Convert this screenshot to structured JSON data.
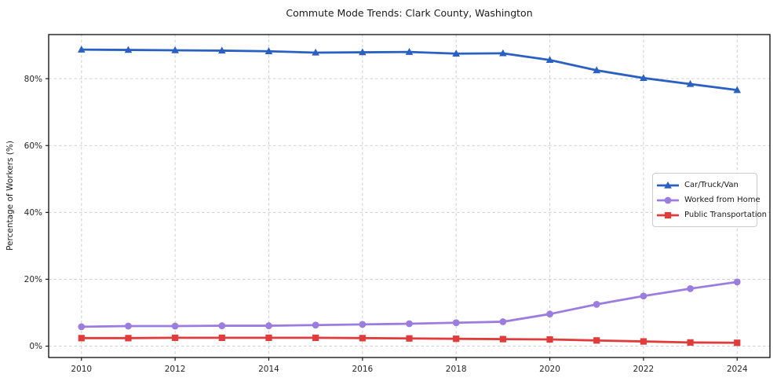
{
  "chart_data": {
    "type": "line",
    "title": "Commute Mode Trends: Clark County, Washington",
    "xlabel": "",
    "ylabel": "Percentage of Workers (%)",
    "x": [
      2010,
      2011,
      2012,
      2013,
      2014,
      2015,
      2016,
      2017,
      2018,
      2019,
      2020,
      2021,
      2022,
      2023,
      2024
    ],
    "series": [
      {
        "name": "Car/Truck/Van",
        "color": "#2a60c2",
        "marker": "triangle",
        "values": [
          88.7,
          88.6,
          88.5,
          88.4,
          88.2,
          87.8,
          87.9,
          88.0,
          87.5,
          87.6,
          85.6,
          82.5,
          80.2,
          78.4,
          76.6
        ]
      },
      {
        "name": "Worked from Home",
        "color": "#9b7de0",
        "marker": "circle",
        "values": [
          5.8,
          6.0,
          6.0,
          6.1,
          6.1,
          6.3,
          6.5,
          6.7,
          7.0,
          7.3,
          9.6,
          12.5,
          15.0,
          17.2,
          19.2
        ]
      },
      {
        "name": "Public Transportation",
        "color": "#e13c3c",
        "marker": "square",
        "values": [
          2.4,
          2.4,
          2.5,
          2.5,
          2.5,
          2.5,
          2.4,
          2.3,
          2.2,
          2.1,
          2.0,
          1.7,
          1.4,
          1.1,
          1.0
        ]
      }
    ],
    "xticks": {
      "values": [
        2010,
        2012,
        2014,
        2016,
        2018,
        2020,
        2022,
        2024
      ],
      "labels": [
        "2010",
        "2012",
        "2014",
        "2016",
        "2018",
        "2020",
        "2022",
        "2024"
      ]
    },
    "yticks": {
      "values": [
        0,
        20,
        40,
        60,
        80
      ],
      "labels": [
        "0%",
        "20%",
        "40%",
        "60%",
        "80%"
      ]
    },
    "xlim": [
      2009.3,
      2024.7
    ],
    "ylim": [
      -3.4,
      93.2
    ],
    "grid": true,
    "grid_style": "dashed",
    "legend_position": "center right",
    "colors": {
      "grid": "#cfcfcf",
      "spine": "#1a1a1a",
      "tick_label": "#262626",
      "background": "#ffffff"
    }
  }
}
